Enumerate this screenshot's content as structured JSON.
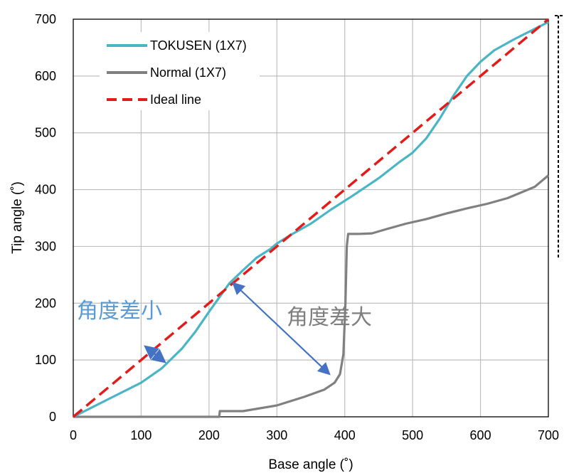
{
  "chart_data": {
    "type": "line",
    "xlabel": "Base angle (˚)",
    "ylabel": "Tip angle (˚)",
    "xlim": [
      0,
      700
    ],
    "ylim": [
      0,
      700
    ],
    "xticks": [
      0,
      100,
      200,
      300,
      400,
      500,
      600,
      700
    ],
    "yticks": [
      0,
      100,
      200,
      300,
      400,
      500,
      600,
      700
    ],
    "grid": true,
    "legend_position": "top-left",
    "series": [
      {
        "name": "TOKUSEN (1X7)",
        "color": "#4ab5c4",
        "style": "solid",
        "x": [
          0,
          20,
          50,
          100,
          130,
          160,
          180,
          200,
          215,
          230,
          250,
          270,
          290,
          300,
          320,
          350,
          380,
          410,
          450,
          480,
          500,
          520,
          540,
          560,
          580,
          600,
          620,
          650,
          680,
          700
        ],
        "y": [
          0,
          12,
          30,
          60,
          85,
          120,
          150,
          185,
          210,
          235,
          258,
          280,
          295,
          305,
          320,
          340,
          365,
          388,
          420,
          448,
          465,
          490,
          525,
          565,
          600,
          625,
          645,
          665,
          683,
          695
        ]
      },
      {
        "name": "Normal (1X7)",
        "color": "#808080",
        "style": "solid",
        "x": [
          0,
          215,
          216,
          250,
          300,
          340,
          370,
          385,
          393,
          398,
          401,
          403,
          405,
          420,
          440,
          460,
          490,
          520,
          550,
          580,
          610,
          640,
          660,
          680,
          700
        ],
        "y": [
          0,
          0,
          10,
          10,
          20,
          35,
          48,
          60,
          75,
          110,
          200,
          300,
          322,
          322,
          323,
          330,
          340,
          348,
          358,
          367,
          375,
          385,
          395,
          405,
          425
        ]
      },
      {
        "name": "Ideal line",
        "color": "#e21b1b",
        "style": "dashed",
        "x": [
          0,
          700
        ],
        "y": [
          0,
          700
        ]
      }
    ],
    "annotations": [
      {
        "text": "角度差小",
        "color": "#5b9bd5"
      },
      {
        "text": "角度差大",
        "color": "#7f7f7f"
      }
    ]
  }
}
